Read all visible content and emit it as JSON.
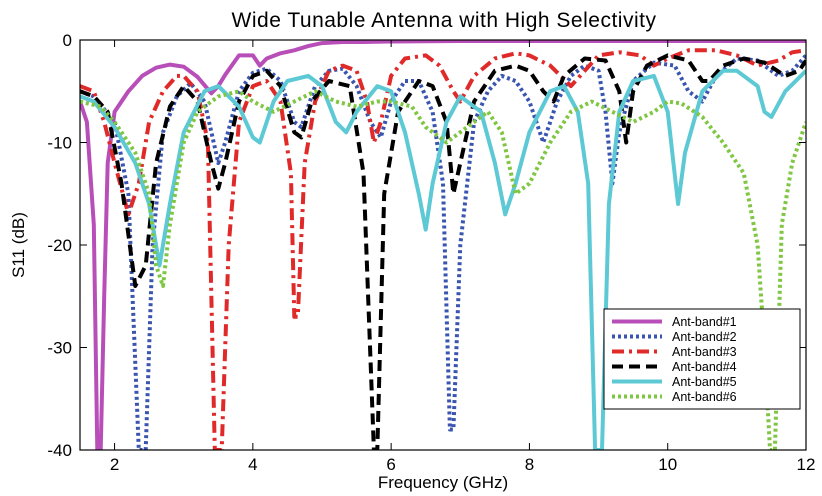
{
  "chart_data": {
    "type": "line",
    "title": "Wide Tunable Antenna with High Selectivity",
    "xlabel": "Frequency (GHz)",
    "ylabel": "S11 (dB)",
    "xlim": [
      1.5,
      12
    ],
    "ylim": [
      -40,
      0
    ],
    "x_ticks": [
      2,
      4,
      6,
      8,
      10,
      12
    ],
    "y_ticks": [
      0,
      -10,
      -20,
      -30,
      -40
    ],
    "grid": false,
    "legend_position": "bottom-right",
    "series": [
      {
        "name": "Ant-band#1",
        "color": "#b84fb8",
        "style": "solid",
        "points": [
          [
            1.5,
            -6
          ],
          [
            1.6,
            -8
          ],
          [
            1.7,
            -18
          ],
          [
            1.75,
            -40
          ],
          [
            1.8,
            -40
          ],
          [
            1.85,
            -25
          ],
          [
            1.9,
            -12
          ],
          [
            2.0,
            -7
          ],
          [
            2.2,
            -5
          ],
          [
            2.4,
            -3.5
          ],
          [
            2.6,
            -2.7
          ],
          [
            2.8,
            -2.4
          ],
          [
            3.0,
            -2.6
          ],
          [
            3.2,
            -3.6
          ],
          [
            3.4,
            -5.2
          ],
          [
            3.5,
            -4.5
          ],
          [
            3.6,
            -3.4
          ],
          [
            3.8,
            -1.5
          ],
          [
            4.0,
            -1.5
          ],
          [
            4.1,
            -2.5
          ],
          [
            4.2,
            -1.8
          ],
          [
            4.4,
            -1.3
          ],
          [
            4.6,
            -1.0
          ],
          [
            4.8,
            -0.6
          ],
          [
            5.0,
            -0.3
          ],
          [
            5.3,
            -0.2
          ],
          [
            5.6,
            -0.2
          ],
          [
            6.0,
            -0.15
          ],
          [
            7.0,
            -0.1
          ],
          [
            8.0,
            -0.1
          ],
          [
            9.0,
            -0.1
          ],
          [
            10.0,
            -0.1
          ],
          [
            11.0,
            -0.1
          ],
          [
            12.0,
            -0.1
          ]
        ]
      },
      {
        "name": "Ant-band#2",
        "color": "#3a55b0",
        "style": "dotted",
        "points": [
          [
            1.5,
            -5
          ],
          [
            1.7,
            -5.5
          ],
          [
            2.0,
            -8
          ],
          [
            2.2,
            -15
          ],
          [
            2.35,
            -40
          ],
          [
            2.45,
            -40
          ],
          [
            2.55,
            -20
          ],
          [
            2.7,
            -9
          ],
          [
            2.9,
            -5.5
          ],
          [
            3.1,
            -4.2
          ],
          [
            3.3,
            -6
          ],
          [
            3.5,
            -12
          ],
          [
            3.6,
            -10
          ],
          [
            3.8,
            -5
          ],
          [
            4.0,
            -3.2
          ],
          [
            4.2,
            -2.8
          ],
          [
            4.4,
            -4
          ],
          [
            4.6,
            -8
          ],
          [
            4.7,
            -8.5
          ],
          [
            4.9,
            -4.5
          ],
          [
            5.1,
            -3
          ],
          [
            5.3,
            -2.8
          ],
          [
            5.5,
            -4.5
          ],
          [
            5.7,
            -8
          ],
          [
            5.85,
            -9.5
          ],
          [
            6.0,
            -6
          ],
          [
            6.2,
            -4
          ],
          [
            6.4,
            -4
          ],
          [
            6.6,
            -7
          ],
          [
            6.75,
            -14
          ],
          [
            6.85,
            -38
          ],
          [
            6.9,
            -38
          ],
          [
            7.0,
            -20
          ],
          [
            7.2,
            -8
          ],
          [
            7.4,
            -5
          ],
          [
            7.6,
            -3.5
          ],
          [
            7.8,
            -4
          ],
          [
            8.0,
            -6
          ],
          [
            8.2,
            -10
          ],
          [
            8.4,
            -6
          ],
          [
            8.6,
            -3.5
          ],
          [
            8.8,
            -2.5
          ],
          [
            9.0,
            -3
          ],
          [
            9.1,
            -7
          ],
          [
            9.2,
            -14
          ],
          [
            9.3,
            -9
          ],
          [
            9.5,
            -4
          ],
          [
            9.8,
            -2.2
          ],
          [
            10.1,
            -2.5
          ],
          [
            10.3,
            -5
          ],
          [
            10.5,
            -6
          ],
          [
            10.7,
            -3.5
          ],
          [
            11.0,
            -1.8
          ],
          [
            11.3,
            -2
          ],
          [
            11.6,
            -3.5
          ],
          [
            11.8,
            -3
          ],
          [
            12.0,
            -1.5
          ]
        ]
      },
      {
        "name": "Ant-band#3",
        "color": "#e02a2a",
        "style": "dashdot",
        "points": [
          [
            1.5,
            -4.5
          ],
          [
            1.7,
            -5
          ],
          [
            1.85,
            -8
          ],
          [
            2.0,
            -12
          ],
          [
            2.2,
            -17
          ],
          [
            2.35,
            -14
          ],
          [
            2.5,
            -8
          ],
          [
            2.7,
            -5
          ],
          [
            2.9,
            -3.5
          ],
          [
            3.0,
            -3.5
          ],
          [
            3.2,
            -5
          ],
          [
            3.35,
            -10
          ],
          [
            3.45,
            -40
          ],
          [
            3.55,
            -40
          ],
          [
            3.65,
            -20
          ],
          [
            3.8,
            -8
          ],
          [
            4.0,
            -4.5
          ],
          [
            4.2,
            -4
          ],
          [
            4.4,
            -6
          ],
          [
            4.55,
            -13
          ],
          [
            4.6,
            -27
          ],
          [
            4.65,
            -27
          ],
          [
            4.75,
            -12
          ],
          [
            4.9,
            -6
          ],
          [
            5.1,
            -3
          ],
          [
            5.3,
            -2.5
          ],
          [
            5.5,
            -3
          ],
          [
            5.65,
            -6
          ],
          [
            5.75,
            -10
          ],
          [
            5.85,
            -8
          ],
          [
            6.0,
            -3.5
          ],
          [
            6.2,
            -1.8
          ],
          [
            6.5,
            -1.5
          ],
          [
            6.7,
            -2.5
          ],
          [
            6.9,
            -5
          ],
          [
            7.0,
            -6
          ],
          [
            7.2,
            -3.5
          ],
          [
            7.5,
            -1.8
          ],
          [
            7.8,
            -1.3
          ],
          [
            8.0,
            -1.5
          ],
          [
            8.3,
            -2.5
          ],
          [
            8.6,
            -4.5
          ],
          [
            8.8,
            -3
          ],
          [
            9.0,
            -1.5
          ],
          [
            9.3,
            -1.2
          ],
          [
            9.6,
            -1.5
          ],
          [
            9.8,
            -2.5
          ],
          [
            10.0,
            -1.8
          ],
          [
            10.3,
            -1
          ],
          [
            10.7,
            -1
          ],
          [
            11.0,
            -1.5
          ],
          [
            11.3,
            -2.5
          ],
          [
            11.6,
            -2
          ],
          [
            11.8,
            -1.2
          ],
          [
            12.0,
            -1
          ]
        ]
      },
      {
        "name": "Ant-band#4",
        "color": "#000000",
        "style": "dashed",
        "points": [
          [
            1.5,
            -5
          ],
          [
            1.7,
            -5.5
          ],
          [
            1.9,
            -7
          ],
          [
            2.1,
            -14
          ],
          [
            2.3,
            -24
          ],
          [
            2.45,
            -22
          ],
          [
            2.6,
            -12
          ],
          [
            2.8,
            -6.5
          ],
          [
            3.0,
            -4.5
          ],
          [
            3.2,
            -6
          ],
          [
            3.4,
            -12
          ],
          [
            3.5,
            -14.5
          ],
          [
            3.6,
            -12
          ],
          [
            3.8,
            -6
          ],
          [
            4.0,
            -3.5
          ],
          [
            4.2,
            -3
          ],
          [
            4.4,
            -4.5
          ],
          [
            4.6,
            -9
          ],
          [
            4.7,
            -9.5
          ],
          [
            4.85,
            -6
          ],
          [
            5.1,
            -4
          ],
          [
            5.4,
            -4.5
          ],
          [
            5.6,
            -13
          ],
          [
            5.75,
            -40
          ],
          [
            5.8,
            -40
          ],
          [
            5.9,
            -15
          ],
          [
            6.1,
            -7
          ],
          [
            6.4,
            -4
          ],
          [
            6.6,
            -4.5
          ],
          [
            6.8,
            -8
          ],
          [
            6.9,
            -15
          ],
          [
            7.0,
            -12
          ],
          [
            7.2,
            -6
          ],
          [
            7.5,
            -3
          ],
          [
            7.8,
            -2.5
          ],
          [
            8.0,
            -3
          ],
          [
            8.2,
            -5
          ],
          [
            8.35,
            -6
          ],
          [
            8.5,
            -3.5
          ],
          [
            8.8,
            -1.8
          ],
          [
            9.1,
            -2
          ],
          [
            9.3,
            -5
          ],
          [
            9.4,
            -10
          ],
          [
            9.5,
            -5
          ],
          [
            9.7,
            -2.5
          ],
          [
            10.0,
            -1.5
          ],
          [
            10.3,
            -2
          ],
          [
            10.5,
            -4
          ],
          [
            10.6,
            -4
          ],
          [
            10.8,
            -2.5
          ],
          [
            11.1,
            -1.8
          ],
          [
            11.4,
            -2.2
          ],
          [
            11.7,
            -3.5
          ],
          [
            11.9,
            -3
          ],
          [
            12.0,
            -2
          ]
        ]
      },
      {
        "name": "Ant-band#5",
        "color": "#5cc9d5",
        "style": "solid",
        "points": [
          [
            1.5,
            -5.5
          ],
          [
            1.7,
            -6
          ],
          [
            2.0,
            -8.5
          ],
          [
            2.3,
            -12
          ],
          [
            2.5,
            -16
          ],
          [
            2.65,
            -22
          ],
          [
            2.8,
            -16
          ],
          [
            3.0,
            -9
          ],
          [
            3.3,
            -5
          ],
          [
            3.5,
            -4.5
          ],
          [
            3.8,
            -6.5
          ],
          [
            4.0,
            -9.5
          ],
          [
            4.1,
            -10
          ],
          [
            4.3,
            -6
          ],
          [
            4.5,
            -4
          ],
          [
            4.8,
            -3.5
          ],
          [
            5.0,
            -4.5
          ],
          [
            5.2,
            -8
          ],
          [
            5.35,
            -9
          ],
          [
            5.5,
            -7
          ],
          [
            5.8,
            -4.5
          ],
          [
            6.0,
            -5
          ],
          [
            6.2,
            -9
          ],
          [
            6.4,
            -15
          ],
          [
            6.5,
            -18.5
          ],
          [
            6.6,
            -14
          ],
          [
            6.8,
            -8
          ],
          [
            7.0,
            -5.5
          ],
          [
            7.3,
            -7
          ],
          [
            7.5,
            -12
          ],
          [
            7.65,
            -17
          ],
          [
            7.8,
            -14
          ],
          [
            8.0,
            -9
          ],
          [
            8.3,
            -5
          ],
          [
            8.5,
            -4.5
          ],
          [
            8.7,
            -7
          ],
          [
            8.85,
            -14
          ],
          [
            8.95,
            -40
          ],
          [
            9.05,
            -40
          ],
          [
            9.15,
            -16
          ],
          [
            9.3,
            -7
          ],
          [
            9.5,
            -4
          ],
          [
            9.8,
            -3.5
          ],
          [
            10.0,
            -7
          ],
          [
            10.1,
            -13
          ],
          [
            10.15,
            -16
          ],
          [
            10.25,
            -11
          ],
          [
            10.5,
            -5
          ],
          [
            10.8,
            -3
          ],
          [
            11.0,
            -3
          ],
          [
            11.3,
            -4.5
          ],
          [
            11.4,
            -7
          ],
          [
            11.5,
            -7.5
          ],
          [
            11.7,
            -5
          ],
          [
            12.0,
            -3
          ]
        ]
      },
      {
        "name": "Ant-band#6",
        "color": "#7fc642",
        "style": "dotted",
        "points": [
          [
            1.5,
            -6
          ],
          [
            1.8,
            -6.5
          ],
          [
            2.0,
            -8
          ],
          [
            2.3,
            -11
          ],
          [
            2.5,
            -15
          ],
          [
            2.6,
            -22
          ],
          [
            2.7,
            -24
          ],
          [
            2.8,
            -18
          ],
          [
            3.0,
            -10
          ],
          [
            3.2,
            -7
          ],
          [
            3.5,
            -5.5
          ],
          [
            3.8,
            -5
          ],
          [
            4.0,
            -6
          ],
          [
            4.3,
            -7
          ],
          [
            4.6,
            -6
          ],
          [
            4.9,
            -5
          ],
          [
            5.2,
            -6
          ],
          [
            5.5,
            -6.5
          ],
          [
            5.8,
            -6
          ],
          [
            6.0,
            -6
          ],
          [
            6.3,
            -6.5
          ],
          [
            6.5,
            -8.5
          ],
          [
            6.8,
            -10
          ],
          [
            7.1,
            -8.5
          ],
          [
            7.4,
            -7
          ],
          [
            7.6,
            -9
          ],
          [
            7.8,
            -15
          ],
          [
            8.0,
            -14
          ],
          [
            8.3,
            -10
          ],
          [
            8.6,
            -7
          ],
          [
            8.9,
            -6
          ],
          [
            9.2,
            -7
          ],
          [
            9.5,
            -8
          ],
          [
            9.8,
            -7
          ],
          [
            10.0,
            -6
          ],
          [
            10.2,
            -6.2
          ],
          [
            10.5,
            -7.5
          ],
          [
            10.8,
            -10
          ],
          [
            11.1,
            -13
          ],
          [
            11.3,
            -20
          ],
          [
            11.4,
            -30
          ],
          [
            11.48,
            -40
          ],
          [
            11.55,
            -40
          ],
          [
            11.65,
            -18
          ],
          [
            11.8,
            -12
          ],
          [
            12.0,
            -8
          ]
        ]
      }
    ]
  }
}
